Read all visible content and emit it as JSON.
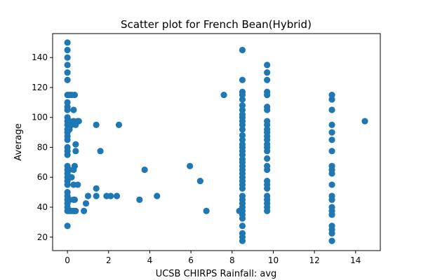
{
  "chart_data": {
    "type": "scatter",
    "title": "Scatter plot for French Bean(Hybrid)",
    "xlabel": "UCSB CHIRPS Rainfall: avg",
    "ylabel": "Average",
    "xlim": [
      -0.72,
      15.2
    ],
    "ylim": [
      11,
      156
    ],
    "xticks": [
      0,
      2,
      4,
      6,
      8,
      10,
      12,
      14
    ],
    "yticks": [
      20,
      40,
      60,
      80,
      100,
      120,
      140
    ],
    "grid": false,
    "marker_color": "#1f77b4",
    "points": [
      [
        0,
        150
      ],
      [
        0,
        145
      ],
      [
        0,
        140
      ],
      [
        0,
        135
      ],
      [
        0,
        130
      ],
      [
        0,
        125
      ],
      [
        0,
        115
      ],
      [
        0,
        110
      ],
      [
        0,
        107
      ],
      [
        0,
        105
      ],
      [
        0,
        100
      ],
      [
        0,
        97.5
      ],
      [
        0,
        95
      ],
      [
        0,
        92
      ],
      [
        0,
        90
      ],
      [
        0,
        87.5
      ],
      [
        0,
        85
      ],
      [
        0,
        80
      ],
      [
        0,
        77.5
      ],
      [
        0,
        75
      ],
      [
        0,
        67.5
      ],
      [
        0,
        65
      ],
      [
        0,
        62.5
      ],
      [
        0,
        60
      ],
      [
        0,
        57.5
      ],
      [
        0,
        55
      ],
      [
        0,
        50
      ],
      [
        0,
        47.5
      ],
      [
        0,
        45
      ],
      [
        0,
        42.5
      ],
      [
        0,
        40
      ],
      [
        0,
        37.5
      ],
      [
        0,
        27.5
      ],
      [
        0.1,
        115
      ],
      [
        0.1,
        97.5
      ],
      [
        0.1,
        92
      ],
      [
        0.1,
        65
      ],
      [
        0.1,
        45
      ],
      [
        0.1,
        37.5
      ],
      [
        0.2,
        115
      ],
      [
        0.2,
        95
      ],
      [
        0.2,
        60
      ],
      [
        0.2,
        37.5
      ],
      [
        0.3,
        105
      ],
      [
        0.3,
        97.5
      ],
      [
        0.3,
        65
      ],
      [
        0.3,
        55
      ],
      [
        0.3,
        45
      ],
      [
        0.3,
        37.5
      ],
      [
        0.35,
        115
      ],
      [
        0.35,
        67.5
      ],
      [
        0.35,
        45
      ],
      [
        0.4,
        95
      ],
      [
        0.4,
        82
      ],
      [
        0.4,
        77.5
      ],
      [
        0.4,
        37.5
      ],
      [
        0.5,
        97.5
      ],
      [
        0.5,
        55
      ],
      [
        0.55,
        97.5
      ],
      [
        0.8,
        37.5
      ],
      [
        0.9,
        42.5
      ],
      [
        1.0,
        47.5
      ],
      [
        1.4,
        95
      ],
      [
        1.4,
        52.5
      ],
      [
        1.4,
        47.5
      ],
      [
        1.6,
        77.5
      ],
      [
        1.9,
        47.5
      ],
      [
        2.1,
        47.5
      ],
      [
        2.4,
        47.5
      ],
      [
        2.5,
        95
      ],
      [
        3.5,
        45
      ],
      [
        3.75,
        65
      ],
      [
        4.35,
        47.5
      ],
      [
        5.95,
        67.5
      ],
      [
        6.45,
        57.5
      ],
      [
        6.75,
        37.5
      ],
      [
        7.6,
        115
      ],
      [
        8.35,
        37.5
      ],
      [
        8.5,
        145
      ],
      [
        8.5,
        125
      ],
      [
        8.5,
        117
      ],
      [
        8.5,
        115
      ],
      [
        8.5,
        112
      ],
      [
        8.5,
        108
      ],
      [
        8.5,
        105
      ],
      [
        8.5,
        102
      ],
      [
        8.5,
        100
      ],
      [
        8.5,
        97.5
      ],
      [
        8.5,
        95
      ],
      [
        8.5,
        92
      ],
      [
        8.5,
        88
      ],
      [
        8.5,
        85
      ],
      [
        8.5,
        82
      ],
      [
        8.5,
        80
      ],
      [
        8.5,
        77.5
      ],
      [
        8.5,
        75
      ],
      [
        8.5,
        72
      ],
      [
        8.5,
        70
      ],
      [
        8.5,
        67.5
      ],
      [
        8.5,
        65
      ],
      [
        8.5,
        62.5
      ],
      [
        8.5,
        60
      ],
      [
        8.5,
        57.5
      ],
      [
        8.5,
        55
      ],
      [
        8.5,
        52.5
      ],
      [
        8.5,
        47.5
      ],
      [
        8.5,
        45
      ],
      [
        8.5,
        42.5
      ],
      [
        8.5,
        40
      ],
      [
        8.5,
        37.5
      ],
      [
        8.5,
        35
      ],
      [
        8.5,
        32.5
      ],
      [
        8.5,
        27.5
      ],
      [
        8.5,
        22.5
      ],
      [
        8.5,
        20
      ],
      [
        8.5,
        17.5
      ],
      [
        9.7,
        135
      ],
      [
        9.7,
        130
      ],
      [
        9.7,
        125
      ],
      [
        9.7,
        117
      ],
      [
        9.7,
        115
      ],
      [
        9.7,
        107
      ],
      [
        9.7,
        105
      ],
      [
        9.7,
        97.5
      ],
      [
        9.7,
        95
      ],
      [
        9.7,
        92
      ],
      [
        9.7,
        90
      ],
      [
        9.7,
        87.5
      ],
      [
        9.7,
        85
      ],
      [
        9.7,
        82
      ],
      [
        9.7,
        80
      ],
      [
        9.7,
        77.5
      ],
      [
        9.7,
        72.5
      ],
      [
        9.7,
        67.5
      ],
      [
        9.7,
        65
      ],
      [
        9.7,
        57.5
      ],
      [
        9.7,
        55
      ],
      [
        9.7,
        52.5
      ],
      [
        9.7,
        47.5
      ],
      [
        9.7,
        45
      ],
      [
        9.7,
        42.5
      ],
      [
        9.7,
        40
      ],
      [
        9.7,
        37.5
      ],
      [
        12.85,
        115
      ],
      [
        12.85,
        112
      ],
      [
        12.85,
        105
      ],
      [
        12.85,
        95
      ],
      [
        12.85,
        90
      ],
      [
        12.85,
        85
      ],
      [
        12.85,
        77.5
      ],
      [
        12.85,
        67.5
      ],
      [
        12.85,
        65
      ],
      [
        12.85,
        62.5
      ],
      [
        12.85,
        55
      ],
      [
        12.85,
        47.5
      ],
      [
        12.85,
        45
      ],
      [
        12.85,
        40
      ],
      [
        12.85,
        37.5
      ],
      [
        12.85,
        35
      ],
      [
        12.85,
        27.5
      ],
      [
        12.85,
        25
      ],
      [
        12.85,
        22.5
      ],
      [
        12.85,
        17.5
      ],
      [
        14.45,
        97.5
      ]
    ]
  }
}
